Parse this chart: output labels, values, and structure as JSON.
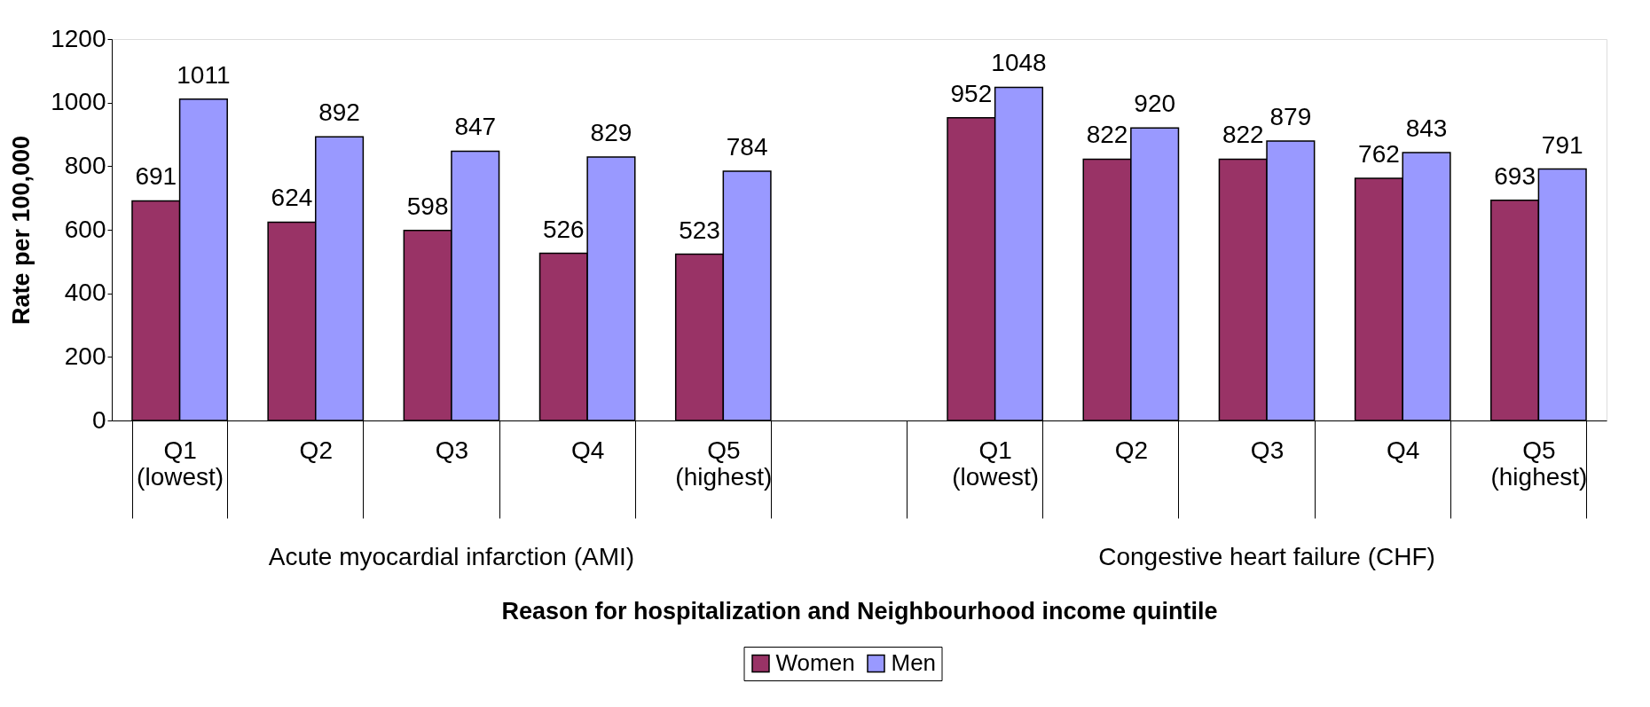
{
  "chart_data": {
    "type": "bar",
    "xlabel": "Reason for hospitalization and Neighbourhood income quintile",
    "ylabel": "Rate per 100,000",
    "categories": [
      "Q1\n(lowest)",
      "Q2",
      "Q3",
      "Q4",
      "Q5\n(highest)",
      null,
      "Q1\n(lowest)",
      "Q2",
      "Q3",
      "Q4",
      "Q5\n(highest)"
    ],
    "series": [
      {
        "name": "Women",
        "color": "#993366",
        "values": [
          691,
          624,
          598,
          526,
          523,
          null,
          952,
          822,
          822,
          762,
          693
        ]
      },
      {
        "name": "Men",
        "color": "#9999ff",
        "values": [
          1011,
          892,
          847,
          829,
          784,
          null,
          1048,
          920,
          879,
          843,
          791
        ]
      }
    ],
    "annotations": [
      "Acute myocardial infarction (AMI)",
      "Congestive heart failure (CHF)"
    ],
    "ylim": [
      0,
      1200
    ],
    "yticks": [
      0,
      200,
      400,
      600,
      800,
      1000,
      1200
    ],
    "data_labels": true,
    "grid": false,
    "legend": "bottom"
  }
}
